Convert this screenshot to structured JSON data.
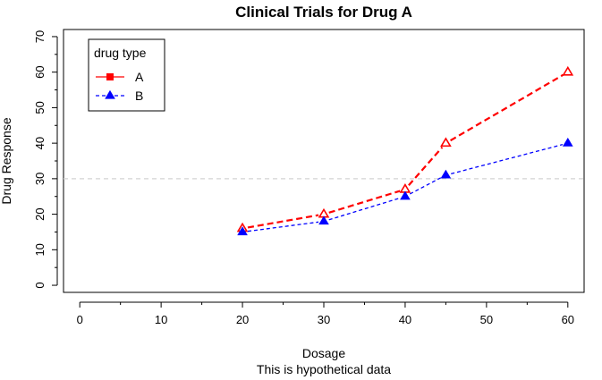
{
  "chart_data": {
    "type": "line",
    "title": "Clinical Trials for Drug A",
    "xlabel": "Dosage",
    "ylabel": "Drug Response",
    "subtitle": "This is hypothetical data",
    "xlim": [
      -2,
      62
    ],
    "ylim": [
      -2,
      72
    ],
    "x_ticks": [
      0,
      10,
      20,
      30,
      40,
      50,
      60
    ],
    "y_ticks": [
      0,
      10,
      20,
      30,
      40,
      50,
      60,
      70
    ],
    "x_minor_ticks": [
      5,
      15,
      25,
      35,
      45,
      55
    ],
    "y_minor_ticks": [
      5,
      15,
      25,
      35,
      45,
      55,
      65
    ],
    "reference_line": {
      "y": 30,
      "color": "#d3d3d3",
      "style": "dashed"
    },
    "legend": {
      "title": "drug type",
      "position": "top-left"
    },
    "x": [
      20,
      30,
      40,
      45,
      60
    ],
    "series": [
      {
        "name": "A",
        "values": [
          16,
          20,
          27,
          40,
          60
        ],
        "color": "#ff0000",
        "marker": "open-triangle",
        "line": "dashed-thick"
      },
      {
        "name": "B",
        "values": [
          15,
          18,
          25,
          31,
          40
        ],
        "color": "#0000ff",
        "marker": "filled-triangle",
        "line": "dashed-thin"
      }
    ]
  }
}
